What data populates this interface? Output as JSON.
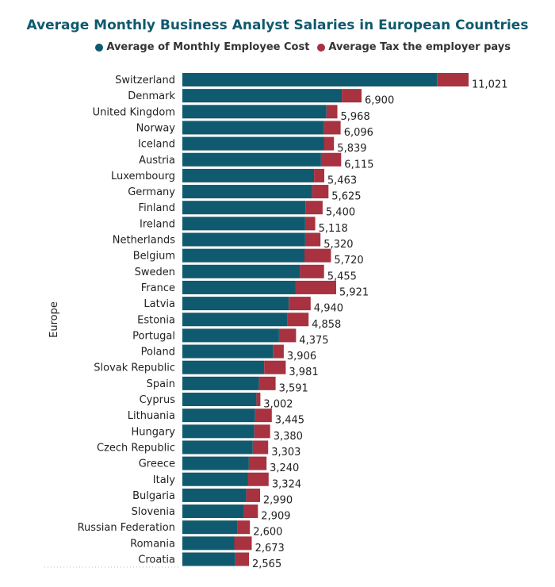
{
  "chart_data": {
    "type": "bar",
    "orientation": "horizontal",
    "stacked": true,
    "title": "Average Monthly Business Analyst Salaries in European Countries",
    "ylabel": "Europe",
    "legend_position": "top-right",
    "series": [
      {
        "name": "Average of Monthly Employee Cost",
        "color": "#0f5a6e"
      },
      {
        "name": "Average Tax the employer pays",
        "color": "#a8323f"
      }
    ],
    "categories": [
      "Switzerland",
      "Denmark",
      "United Kingdom",
      "Norway",
      "Iceland",
      "Austria",
      "Luxembourg",
      "Germany",
      "Finland",
      "Ireland",
      "Netherlands",
      "Belgium",
      "Sweden",
      "France",
      "Latvia",
      "Estonia",
      "Portugal",
      "Poland",
      "Slovak Republic",
      "Spain",
      "Cyprus",
      "Lithuania",
      "Hungary",
      "Czech Republic",
      "Greece",
      "Italy",
      "Bulgaria",
      "Slovenia",
      "Russian Federation",
      "Romania",
      "Croatia"
    ],
    "employee_cost": [
      9805,
      6140,
      5550,
      5460,
      5450,
      5340,
      5070,
      5000,
      4740,
      4730,
      4730,
      4700,
      4530,
      4350,
      4100,
      4050,
      3720,
      3490,
      3150,
      2950,
      2850,
      2800,
      2770,
      2710,
      2560,
      2520,
      2460,
      2370,
      2130,
      2000,
      2040
    ],
    "employer_tax": [
      1216,
      760,
      418,
      636,
      389,
      775,
      393,
      625,
      660,
      388,
      590,
      1020,
      925,
      1571,
      840,
      808,
      655,
      416,
      831,
      641,
      152,
      645,
      610,
      593,
      680,
      804,
      530,
      539,
      470,
      673,
      525
    ],
    "value_labels": [
      "11,021",
      "6,900",
      "5,968",
      "6,096",
      "5,839",
      "6,115",
      "5,463",
      "5,625",
      "5,400",
      "5,118",
      "5,320",
      "5,720",
      "5,455",
      "5,921",
      "4,940",
      "4,858",
      "4,375",
      "3,906",
      "3,981",
      "3,591",
      "3,002",
      "3,445",
      "3,380",
      "3,303",
      "3,240",
      "3,324",
      "2,990",
      "2,909",
      "2,600",
      "2,673",
      "2,565"
    ]
  }
}
